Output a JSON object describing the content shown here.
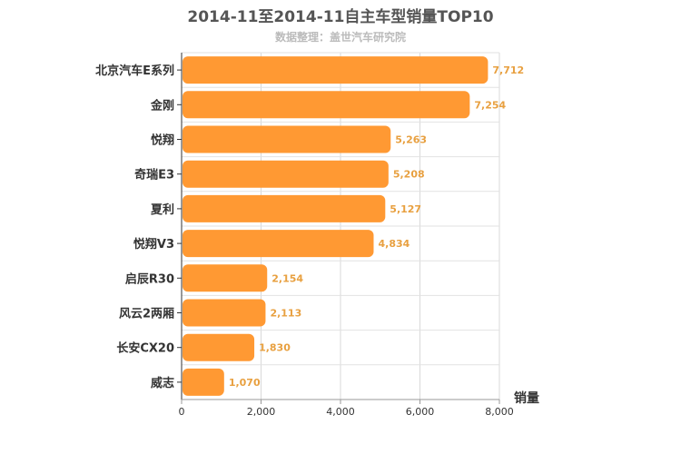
{
  "chart_data": {
    "type": "bar",
    "orientation": "horizontal",
    "title": "2014-11至2014-11自主车型销量TOP10",
    "subtitle": "数据整理：盖世汽车研究院",
    "categories": [
      "北京汽车E系列",
      "金刚",
      "悦翔",
      "奇瑞E3",
      "夏利",
      "悦翔V3",
      "启辰R30",
      "风云2两厢",
      "长安CX20",
      "威志"
    ],
    "values": [
      7712,
      7254,
      5263,
      5208,
      5127,
      4834,
      2154,
      2113,
      1830,
      1070
    ],
    "value_labels": [
      "7,712",
      "7,254",
      "5,263",
      "5,208",
      "5,127",
      "4,834",
      "2,154",
      "2,113",
      "1,830",
      "1,070"
    ],
    "xlabel": "销量",
    "xlim": [
      0,
      8000
    ],
    "xticks": [
      0,
      2000,
      4000,
      6000,
      8000
    ],
    "xtick_labels": [
      "0",
      "2,000",
      "4,000",
      "6,000",
      "8,000"
    ],
    "grid": true,
    "bar_color": "#ff9933",
    "label_color": "#e8a040"
  }
}
